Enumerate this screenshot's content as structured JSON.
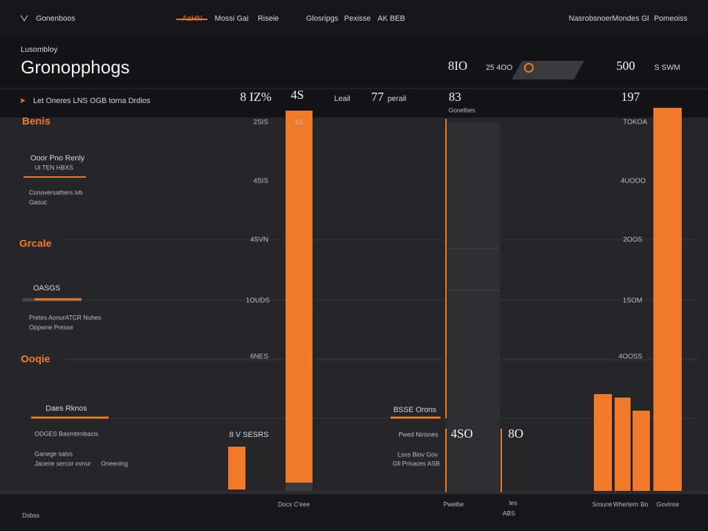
{
  "nav": {
    "logo": "Gonenboos",
    "links": [
      "AaHN",
      "Mossi Gai",
      "Riseie",
      "Glosripgs",
      "Pexisse",
      "AK BEB"
    ],
    "right": [
      "Nasrobsnoer",
      "Mondes Gl",
      "Pomeoiss"
    ]
  },
  "header": {
    "kicker": "Lusombloy",
    "title": "Gronopphogs",
    "stats": [
      "8IO",
      "25 4OO",
      "500",
      "S SWM"
    ]
  },
  "summary": {
    "caption": "Let Oneres LNS OGB torna Drdios",
    "items": [
      "8 IZ%",
      "4S",
      "Leail",
      "77",
      "perail",
      "83",
      "Gonelbes",
      "197"
    ]
  },
  "sidebar": {
    "sections": [
      {
        "title": "Benis",
        "items": [
          "Ooor Pno Renly",
          "Ul TEN HBXS",
          "Conoversathers ivb",
          "Gasuc"
        ]
      },
      {
        "title": "Grcale",
        "items": [
          "OASGS",
          "Pretes AonurATCR Nuhes",
          "Oppwne Presse"
        ]
      },
      {
        "title": "Ooqie",
        "items": [
          "Daes Rknos",
          "ODGES Basmbrnbacis",
          "Ganege salss",
          "Jacerie sercor ovnur",
          "Oneening"
        ]
      }
    ]
  },
  "left_axis": [
    "2SIS",
    "4SIS",
    "4SVN",
    "1OUDS",
    "6NES"
  ],
  "left_labels": [
    "S3",
    "8 V SESRS",
    "Docs C'eee"
  ],
  "middle": {
    "labels": [
      "BSSE Orons",
      "Pwed Nirisnes",
      "4SO",
      "8O",
      "Lsos Biov Gov",
      "Gll Prisaces ASB",
      "Pwelbe",
      "Ies",
      "ABS"
    ]
  },
  "right_axis": [
    "TOKOA",
    "4UOOO",
    "2OOS",
    "1SOM",
    "4OOSS"
  ],
  "right_labels": [
    "Sroune",
    "Whertem",
    "Bo",
    "Govinse"
  ],
  "footer": "Dsbss"
}
